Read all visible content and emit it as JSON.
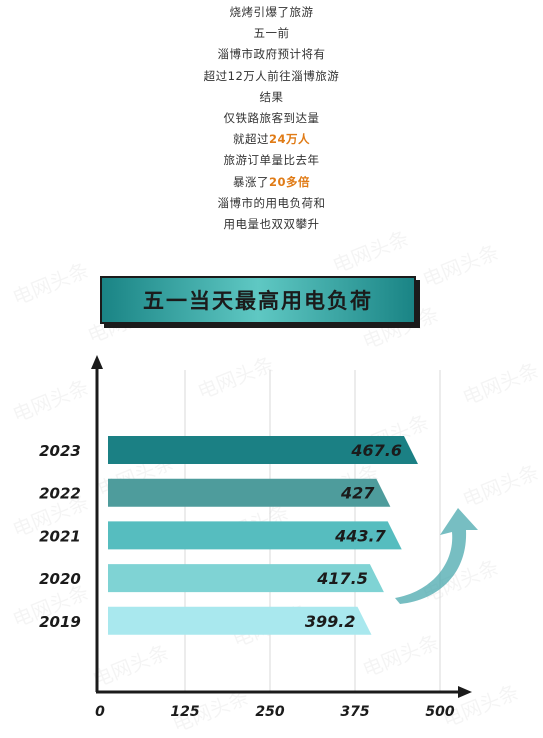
{
  "intro_lines": [
    {
      "pre": "烧烤引爆了旅游",
      "hl": "",
      "post": ""
    },
    {
      "pre": "五一前",
      "hl": "",
      "post": ""
    },
    {
      "pre": "淄博市政府预计将有",
      "hl": "",
      "post": ""
    },
    {
      "pre": "超过12万人前往淄博旅游",
      "hl": "",
      "post": ""
    },
    {
      "pre": "结果",
      "hl": "",
      "post": ""
    },
    {
      "pre": "仅铁路旅客到达量",
      "hl": "",
      "post": ""
    },
    {
      "pre": "就超过",
      "hl": "24万人",
      "post": ""
    },
    {
      "pre": "旅游订单量比去年",
      "hl": "",
      "post": ""
    },
    {
      "pre": "暴涨了",
      "hl": "20多倍",
      "post": ""
    },
    {
      "pre": "淄博市的用电负荷和",
      "hl": "",
      "post": ""
    },
    {
      "pre": "用电量也双双攀升",
      "hl": "",
      "post": ""
    }
  ],
  "watermark_text": "电网头条",
  "colors": {
    "highlight": "#e07b16",
    "axis": "#1b1b1b",
    "grid": "#d8d8d8",
    "bars": [
      "#1b8084",
      "#4e9c9c",
      "#56bdbf",
      "#7fd3d4",
      "#a9e8ee"
    ],
    "arrow": "#4aa8ad"
  },
  "chart_data": {
    "type": "bar",
    "orientation": "horizontal",
    "title": "五一当天最高用电负荷",
    "categories": [
      "2023",
      "2022",
      "2021",
      "2020",
      "2019"
    ],
    "values": [
      467.6,
      427,
      443.7,
      417.5,
      399.2
    ],
    "value_labels": [
      "467.6",
      "427",
      "443.7",
      "417.5",
      "399.2"
    ],
    "xlim": [
      0,
      500
    ],
    "xticks": [
      0,
      125,
      250,
      375,
      500
    ],
    "grid": true,
    "legend": "none"
  }
}
